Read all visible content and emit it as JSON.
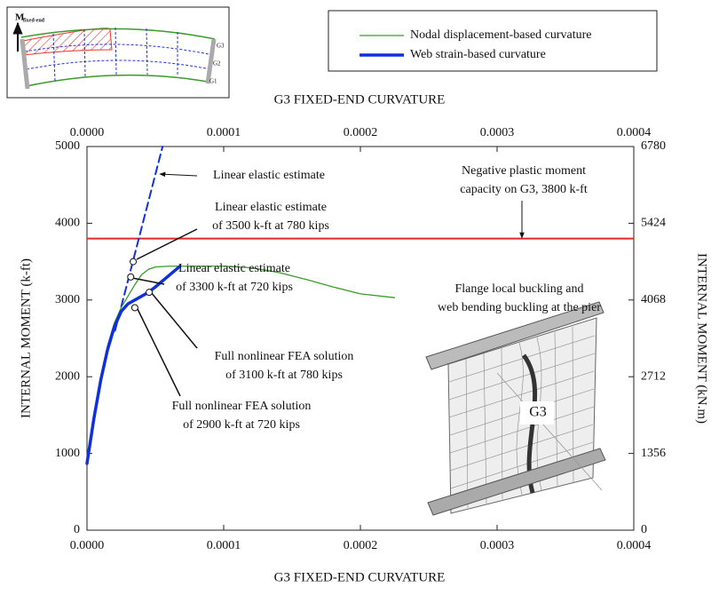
{
  "chart_data": {
    "type": "line",
    "x_label": "G3 FIXED-END CURVATURE",
    "x2_label": "G3 FIXED-END CURVATURE",
    "y_label": "INTERNAL MOMENT (k-ft)",
    "y2_label": "INTERNAL MOMENT (kN.m)",
    "xlim": [
      0,
      0.0004
    ],
    "xticks": [
      {
        "value": 0,
        "label": "0.0000"
      },
      0.0001,
      0.0002,
      0.0003,
      0.0004
    ],
    "ylim": [
      0,
      5000
    ],
    "yticks": [
      0,
      1000,
      2000,
      3000,
      4000,
      5000
    ],
    "y2lim": [
      0,
      6780
    ],
    "y2ticks": [
      0,
      1356,
      2712,
      4068,
      5424,
      6780
    ],
    "grid": false,
    "series": [
      {
        "name": "Nodal displacement-based curvature",
        "color": "#3a9a2a",
        "width": 1.3,
        "x": [
          0,
          5e-06,
          1e-05,
          1.5e-05,
          2e-05,
          2.5e-05,
          3e-05,
          3.5e-05,
          4e-05,
          4.5e-05,
          5e-05,
          6e-05,
          8e-05,
          0.0001,
          0.00012,
          0.00014,
          0.00016,
          0.00018,
          0.0002,
          0.000225
        ],
        "values": [
          870,
          1500,
          2000,
          2400,
          2700,
          2900,
          3050,
          3200,
          3330,
          3400,
          3430,
          3440,
          3440,
          3440,
          3420,
          3360,
          3270,
          3170,
          3080,
          3030
        ]
      },
      {
        "name": "Web strain-based curvature",
        "color": "#1030e0",
        "width": 3.5,
        "x": [
          0,
          5e-06,
          1e-05,
          1.5e-05,
          2e-05,
          2.5e-05,
          3e-05,
          3.5e-05,
          4e-05,
          4.5e-05,
          5e-05,
          6e-05,
          6.8e-05
        ],
        "values": [
          870,
          1450,
          1950,
          2350,
          2650,
          2850,
          2950,
          3000,
          3050,
          3100,
          3170,
          3320,
          3440
        ]
      }
    ],
    "elastic_estimate": {
      "color": "#1030e0",
      "line_style": "dashed",
      "x": [
        2.05e-05,
        5.53e-05
      ],
      "values": [
        2600,
        5000
      ]
    },
    "reference_line": {
      "value": 3800,
      "color": "#e8262a"
    },
    "points": {
      "x": [
        3.38e-05,
        3.2e-05,
        4.55e-05,
        3.5e-05
      ],
      "values": [
        3500,
        3300,
        3100,
        2900
      ]
    },
    "annotations": [
      {
        "lines": [
          "Linear elastic estimate"
        ]
      },
      {
        "lines": [
          "Linear elastic estimate",
          "of 3500 k-ft at 780 kips"
        ]
      },
      {
        "lines": [
          "Negative plastic moment",
          "capacity on G3, 3800 k-ft"
        ]
      },
      {
        "lines": [
          "Linear elastic estimate",
          "of 3300 k-ft at 720 kips"
        ]
      },
      {
        "lines": [
          "Full nonlinear FEA solution",
          "of 3100 k-ft at 780 kips"
        ]
      },
      {
        "lines": [
          "Full nonlinear FEA solution",
          "of 2900 k-ft at 720 kips"
        ]
      },
      {
        "lines": [
          "Flange local buckling and",
          "web bending buckling at the pier"
        ]
      }
    ],
    "fea_label": "G3",
    "inset": {
      "moment_label": "M",
      "moment_subscript": "fixed-end",
      "girders": [
        "G3",
        "G2",
        "G1"
      ]
    }
  }
}
